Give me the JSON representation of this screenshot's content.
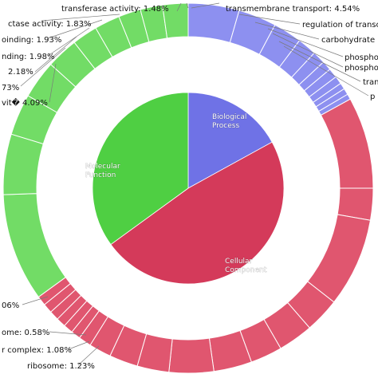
{
  "colors": {
    "biological_process": "#6f72e6",
    "cellular_component": "#d43a5a",
    "molecular_function": "#4fcf43",
    "ring_biological_process": "#8d90f0",
    "ring_cellular_component": "#e0566f",
    "ring_molecular_function": "#72dc66",
    "leader_line": "#7a7a7a"
  },
  "chart_data": {
    "type": "pie",
    "inner": {
      "labels": [
        "Biological Process",
        "Cellular Component",
        "Molecular Function"
      ],
      "values": [
        17,
        48,
        35
      ]
    },
    "outer_labels": [
      "transferase activity: 1.48%",
      "ctase activity: 1.83%",
      "oinding: 1.93%",
      "nding: 1.98%",
      "2.18%",
      "73%",
      "vit� 4.09%",
      "06%",
      "ome: 0.58%",
      "r complex: 1.08%",
      "ribosome: 1.23%",
      "transmembrane transport: 4.54%",
      "regulation of transc",
      "carbohydrate",
      "phospho",
      "phosphor",
      "tran",
      "p"
    ]
  }
}
